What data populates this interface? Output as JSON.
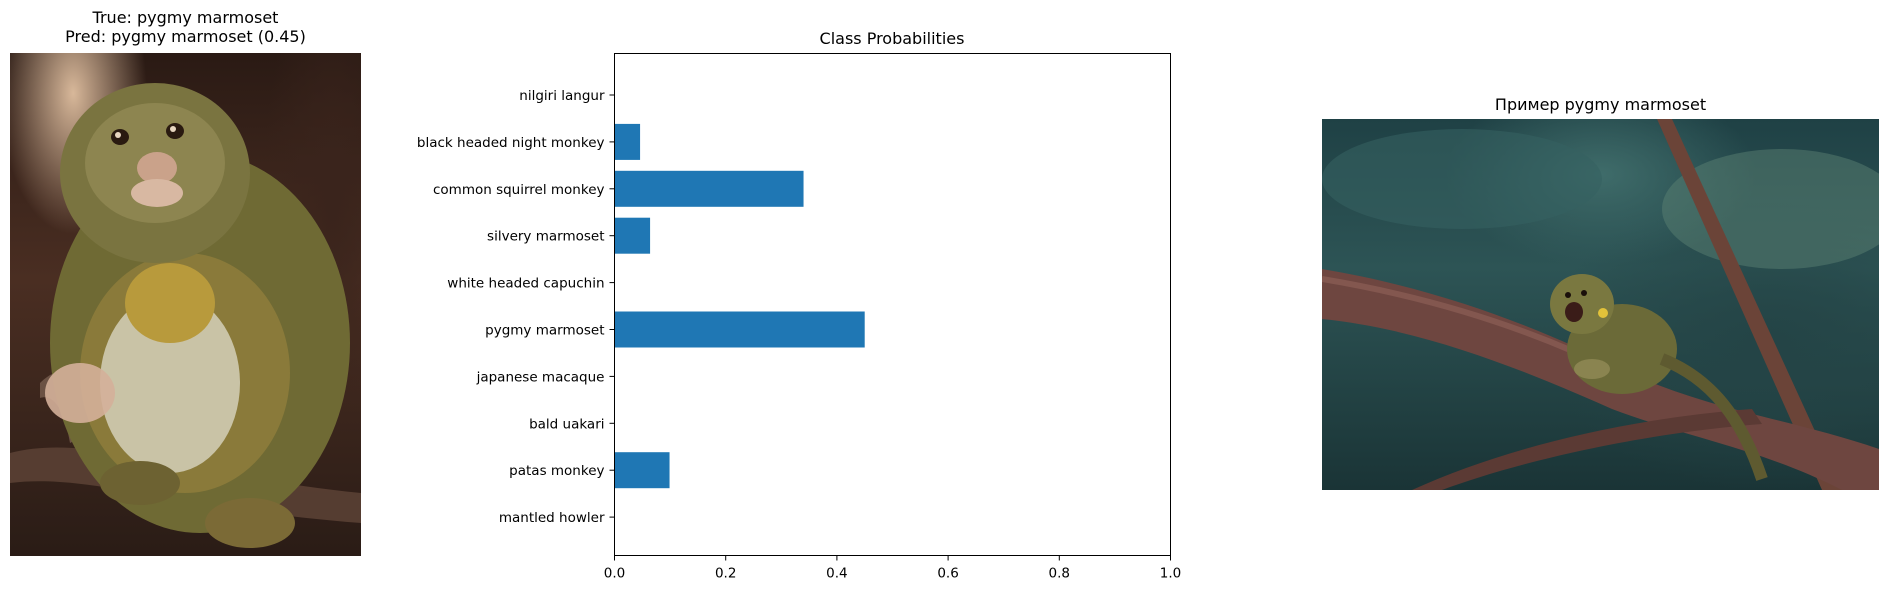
{
  "left_panel": {
    "title_line1": "True: pygmy marmoset",
    "title_line2": "Pred: pygmy marmoset (0.45)"
  },
  "right_panel": {
    "title": "Пример pygmy marmoset"
  },
  "chart_data": {
    "type": "bar",
    "orientation": "horizontal",
    "title": "Class Probabilities",
    "xlabel": "",
    "ylabel": "",
    "xlim": [
      0,
      1.0
    ],
    "xticks": [
      "0.0",
      "0.2",
      "0.4",
      "0.6",
      "0.8",
      "1.0"
    ],
    "categories": [
      "nilgiri langur",
      "black headed night monkey",
      "common squirrel monkey",
      "silvery marmoset",
      "white headed capuchin",
      "pygmy marmoset",
      "japanese macaque",
      "bald uakari",
      "patas monkey",
      "mantled howler"
    ],
    "values": [
      0.0,
      0.046,
      0.34,
      0.064,
      0.0,
      0.45,
      0.0,
      0.0,
      0.099,
      0.0
    ],
    "bar_color": "#1f77b4",
    "grid": false
  }
}
